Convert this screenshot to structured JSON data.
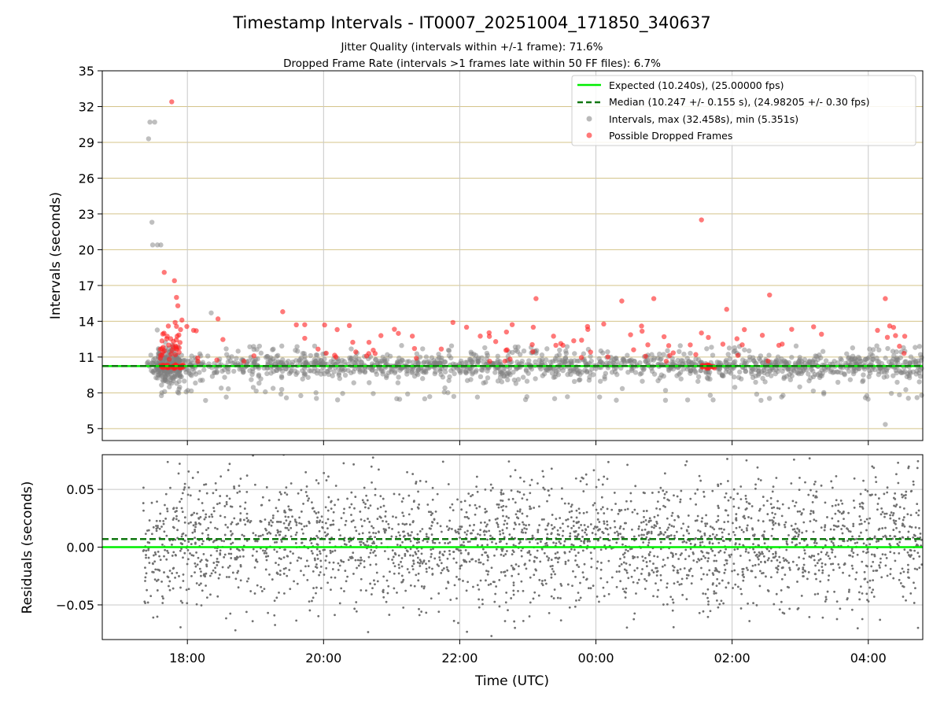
{
  "figure": {
    "title": "Timestamp Intervals - IT0007_20251004_171850_340637",
    "subtitle_1": "Jitter Quality (intervals within +/-1 frame): 71.6%",
    "subtitle_2": "Dropped Frame Rate (intervals >1 frames late within 50 FF files): 6.7%"
  },
  "chart_data": [
    {
      "type": "scatter",
      "name": "intervals-panel",
      "ylabel": "Intervals (seconds)",
      "ylim": [
        4,
        35
      ],
      "y_ticks": [
        5,
        8,
        11,
        14,
        17,
        20,
        23,
        26,
        29,
        32,
        35
      ],
      "x_ticks": [
        "18:00",
        "20:00",
        "22:00",
        "00:00",
        "02:00",
        "04:00"
      ],
      "xlim_hours": [
        16.75,
        28.8
      ],
      "grid": {
        "x": true,
        "y": true,
        "y_color": "#d4c48a"
      },
      "legend_position": "top-right",
      "reference_lines": [
        {
          "label": "Expected (10.240s), (25.00000 fps)",
          "value": 10.24,
          "color": "#00ee00",
          "style": "solid"
        },
        {
          "label": "Median (10.247 +/- 0.155 s), (24.98205 +/- 0.30 fps)",
          "value": 10.247,
          "color": "#117711",
          "style": "dashed"
        }
      ],
      "series": [
        {
          "label": "Intervals, max (32.458s), min (5.351s)",
          "color": "#808080",
          "max": 32.458,
          "min": 5.351
        },
        {
          "label": "Possible Dropped Frames",
          "color": "#ff2020"
        }
      ],
      "highlight_points": [
        {
          "x": 17.45,
          "y": 30.7,
          "series": 0
        },
        {
          "x": 17.52,
          "y": 30.7,
          "series": 0
        },
        {
          "x": 17.43,
          "y": 29.3,
          "series": 0
        },
        {
          "x": 17.48,
          "y": 22.3,
          "series": 0
        },
        {
          "x": 17.49,
          "y": 20.4,
          "series": 0
        },
        {
          "x": 17.56,
          "y": 20.4,
          "series": 0
        },
        {
          "x": 17.61,
          "y": 20.4,
          "series": 0
        },
        {
          "x": 17.77,
          "y": 32.4,
          "series": 1
        },
        {
          "x": 17.66,
          "y": 18.1,
          "series": 1
        },
        {
          "x": 17.81,
          "y": 17.4,
          "series": 1
        },
        {
          "x": 17.84,
          "y": 16.0,
          "series": 1
        },
        {
          "x": 17.86,
          "y": 15.3,
          "series": 1
        },
        {
          "x": 17.92,
          "y": 14.1,
          "series": 1
        },
        {
          "x": 17.82,
          "y": 13.9,
          "series": 1
        },
        {
          "x": 17.9,
          "y": 13.3,
          "series": 1
        },
        {
          "x": 17.72,
          "y": 13.6,
          "series": 1
        },
        {
          "x": 18.35,
          "y": 14.7,
          "series": 0
        },
        {
          "x": 18.45,
          "y": 14.2,
          "series": 1
        },
        {
          "x": 19.4,
          "y": 14.8,
          "series": 1
        },
        {
          "x": 19.6,
          "y": 13.7,
          "series": 1
        },
        {
          "x": 20.2,
          "y": 13.3,
          "series": 1
        },
        {
          "x": 21.9,
          "y": 13.9,
          "series": 1
        },
        {
          "x": 22.1,
          "y": 13.5,
          "series": 1
        },
        {
          "x": 23.12,
          "y": 15.9,
          "series": 1
        },
        {
          "x": 23.08,
          "y": 13.5,
          "series": 1
        },
        {
          "x": 24.38,
          "y": 15.7,
          "series": 1
        },
        {
          "x": 24.85,
          "y": 15.9,
          "series": 1
        },
        {
          "x": 24.67,
          "y": 13.6,
          "series": 1
        },
        {
          "x": 25.55,
          "y": 22.5,
          "series": 1
        },
        {
          "x": 25.92,
          "y": 15.0,
          "series": 1
        },
        {
          "x": 26.55,
          "y": 16.2,
          "series": 1
        },
        {
          "x": 26.18,
          "y": 13.3,
          "series": 1
        },
        {
          "x": 28.25,
          "y": 15.9,
          "series": 1
        },
        {
          "x": 28.4,
          "y": 12.8,
          "series": 1
        },
        {
          "x": 28.25,
          "y": 5.35,
          "series": 0
        }
      ]
    },
    {
      "type": "scatter",
      "name": "residuals-panel",
      "ylabel": "Residuals (seconds)",
      "xlabel": "Time (UTC)",
      "ylim": [
        -0.08,
        0.08
      ],
      "y_ticks": [
        -0.05,
        0.0,
        0.05
      ],
      "y_tick_labels": [
        "−0.05",
        "0.00",
        "0.05"
      ],
      "x_ticks": [
        "18:00",
        "20:00",
        "22:00",
        "00:00",
        "02:00",
        "04:00"
      ],
      "xlim_hours": [
        16.75,
        28.8
      ],
      "grid": {
        "x": true,
        "y": true
      },
      "reference_lines": [
        {
          "value": 0.0,
          "color": "#00ee00",
          "style": "solid"
        },
        {
          "value": 0.007,
          "color": "#117711",
          "style": "dashed"
        }
      ],
      "series": [
        {
          "color": "#707070",
          "x_range_hours": [
            17.35,
            28.8
          ],
          "spread_sd": 0.028
        }
      ]
    }
  ]
}
